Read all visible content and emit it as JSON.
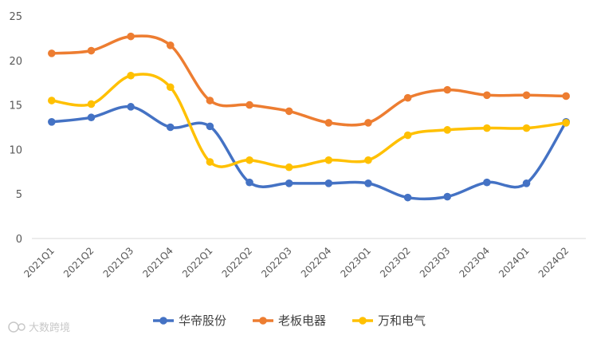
{
  "chart_data": {
    "type": "line",
    "title": "",
    "xlabel": "",
    "ylabel": "",
    "ylim": [
      0,
      25
    ],
    "yticks": [
      0,
      5,
      10,
      15,
      20,
      25
    ],
    "grid": false,
    "legend_position": "bottom",
    "smooth": true,
    "categories": [
      "2021Q1",
      "2021Q2",
      "2021Q3",
      "2021Q4",
      "2022Q1",
      "2022Q2",
      "2022Q3",
      "2022Q4",
      "2023Q1",
      "2023Q2",
      "2023Q3",
      "2023Q4",
      "2024Q1",
      "2024Q2"
    ],
    "series": [
      {
        "name": "华帝股份",
        "color": "#4472C4",
        "values": [
          13.1,
          13.6,
          14.8,
          12.5,
          12.6,
          6.3,
          6.2,
          6.2,
          6.2,
          4.6,
          4.7,
          6.3,
          6.2,
          13.1
        ]
      },
      {
        "name": "老板电器",
        "color": "#ED7D31",
        "values": [
          20.8,
          21.1,
          22.7,
          21.7,
          15.5,
          15.0,
          14.3,
          13.0,
          13.0,
          15.8,
          16.7,
          16.1,
          16.1,
          16.0
        ]
      },
      {
        "name": "万和电气",
        "color": "#FFC000",
        "values": [
          15.5,
          15.1,
          18.3,
          17.0,
          8.6,
          8.8,
          8.0,
          8.8,
          8.8,
          11.6,
          12.2,
          12.4,
          12.4,
          13.0
        ]
      }
    ]
  },
  "watermark": {
    "text": "大数跨境",
    "logo_icon": "dashuju-logo-icon"
  }
}
